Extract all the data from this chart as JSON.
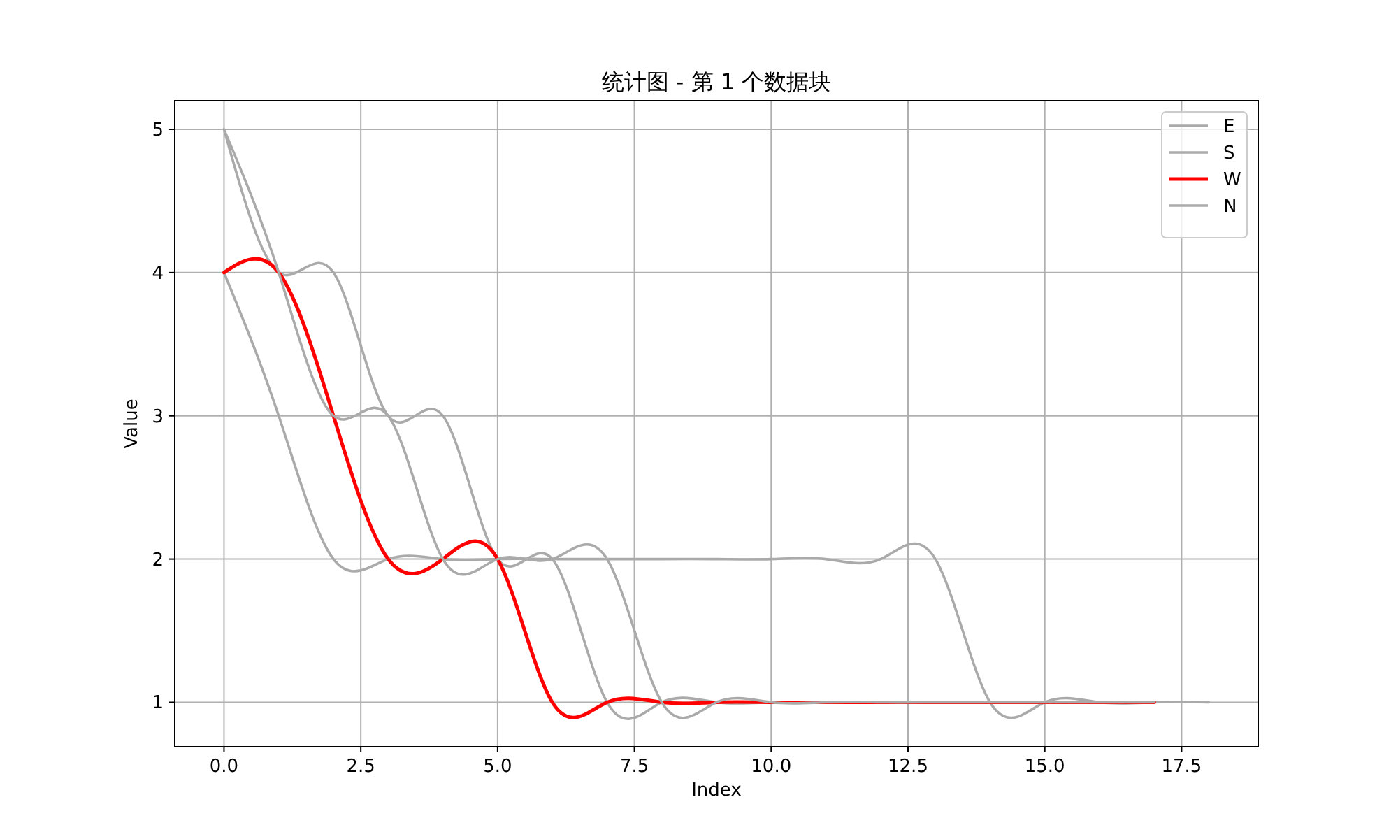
{
  "chart_data": {
    "type": "line",
    "title": "统计图 - 第 1 个数据块",
    "xlabel": "Index",
    "ylabel": "Value",
    "series": [
      {
        "name": "E",
        "color": "#aaaaaa",
        "x": [
          0,
          1,
          2,
          3,
          4,
          5,
          6,
          7,
          8,
          9,
          10,
          11,
          12,
          13,
          14,
          15,
          16,
          17,
          18
        ],
        "values": [
          4,
          3,
          2,
          2,
          2,
          2,
          2,
          2,
          2,
          2,
          2,
          2,
          2,
          2,
          1,
          1,
          1,
          1,
          1
        ]
      },
      {
        "name": "S",
        "color": "#aaaaaa",
        "x": [
          0,
          1,
          2,
          3,
          4,
          5,
          6,
          7,
          8,
          9,
          10,
          11,
          12,
          13,
          14,
          15,
          16,
          17
        ],
        "values": [
          5,
          4,
          4,
          3,
          3,
          2,
          2,
          1,
          1,
          1,
          1,
          1,
          1,
          1,
          1,
          1,
          1,
          1
        ]
      },
      {
        "name": "W",
        "color": "#ff0000",
        "x": [
          0,
          1,
          2,
          3,
          4,
          5,
          6,
          7,
          8,
          9,
          10,
          11,
          12,
          13,
          14,
          15,
          16,
          17
        ],
        "values": [
          4,
          4,
          3,
          2,
          2,
          2,
          1,
          1,
          1,
          1,
          1,
          1,
          1,
          1,
          1,
          1,
          1,
          1
        ]
      },
      {
        "name": "N",
        "color": "#aaaaaa",
        "x": [
          0,
          1,
          2,
          3,
          4,
          5,
          6,
          7,
          8,
          9,
          10,
          11,
          12,
          13,
          14,
          15,
          16,
          17
        ],
        "values": [
          5,
          4,
          3,
          3,
          2,
          2,
          2,
          2,
          1,
          1,
          1,
          1,
          1,
          1,
          1,
          1,
          1,
          1
        ]
      }
    ],
    "xlim": [
      -0.9,
      18.9
    ],
    "ylim": [
      0.69,
      5.2
    ],
    "xticks": [
      {
        "value": 0,
        "label": "0.0"
      },
      {
        "value": 2.5,
        "label": "2.5"
      },
      {
        "value": 5,
        "label": "5.0"
      },
      {
        "value": 7.5,
        "label": "7.5"
      },
      {
        "value": 10,
        "label": "10.0"
      },
      {
        "value": 12.5,
        "label": "12.5"
      },
      {
        "value": 15,
        "label": "15.0"
      },
      {
        "value": 17.5,
        "label": "17.5"
      }
    ],
    "yticks": [
      1,
      2,
      3,
      4,
      5
    ],
    "grid": true,
    "legend": "top right"
  }
}
